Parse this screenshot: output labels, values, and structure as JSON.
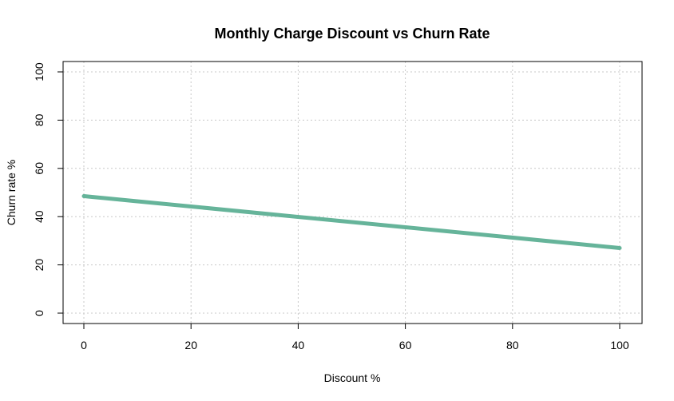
{
  "chart_data": {
    "type": "line",
    "title": "Monthly Charge Discount vs Churn Rate",
    "xlabel": "Discount %",
    "ylabel": "Churn rate %",
    "xlim": [
      0,
      100
    ],
    "ylim": [
      0,
      100
    ],
    "x_ticks": [
      0,
      20,
      40,
      60,
      80,
      100
    ],
    "y_ticks": [
      0,
      20,
      40,
      60,
      80,
      100
    ],
    "grid": true,
    "series": [
      {
        "color": "#66b49a",
        "x": [
          0,
          100
        ],
        "y": [
          48.5,
          27
        ]
      }
    ]
  }
}
